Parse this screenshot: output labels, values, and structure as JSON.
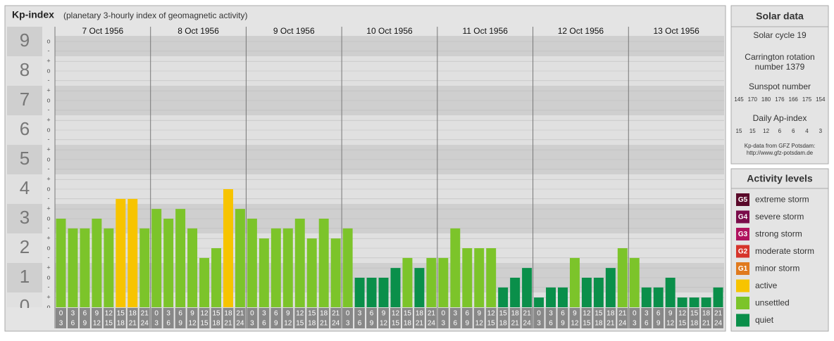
{
  "chart_data": {
    "type": "bar",
    "title": "Kp-index",
    "subtitle": "(planetary 3-hourly index of geomagnetic activity)",
    "ylim": [
      0,
      9.5
    ],
    "yticks": [
      0,
      1,
      2,
      3,
      4,
      5,
      6,
      7,
      8,
      9
    ],
    "minor_yticks": [
      {
        "value": 0,
        "label": "o"
      },
      {
        "value": 0.33,
        "label": "+"
      },
      {
        "value": 0.67,
        "label": "-"
      },
      {
        "value": 1,
        "label": "o"
      },
      {
        "value": 1.33,
        "label": "+"
      },
      {
        "value": 1.67,
        "label": "-"
      },
      {
        "value": 2,
        "label": "o"
      },
      {
        "value": 2.33,
        "label": "+"
      },
      {
        "value": 2.67,
        "label": "-"
      },
      {
        "value": 3,
        "label": "o"
      },
      {
        "value": 3.33,
        "label": "+"
      },
      {
        "value": 3.67,
        "label": "-"
      },
      {
        "value": 4,
        "label": "o"
      },
      {
        "value": 4.33,
        "label": "+"
      },
      {
        "value": 4.67,
        "label": "-"
      },
      {
        "value": 5,
        "label": "o"
      },
      {
        "value": 5.33,
        "label": "+"
      },
      {
        "value": 5.67,
        "label": "-"
      },
      {
        "value": 6,
        "label": "o"
      },
      {
        "value": 6.33,
        "label": "+"
      },
      {
        "value": 6.67,
        "label": "-"
      },
      {
        "value": 7,
        "label": "o"
      },
      {
        "value": 7.33,
        "label": "+"
      },
      {
        "value": 7.67,
        "label": "-"
      },
      {
        "value": 8,
        "label": "o"
      },
      {
        "value": 8.33,
        "label": "+"
      },
      {
        "value": 8.67,
        "label": "-"
      },
      {
        "value": 9,
        "label": "o"
      }
    ],
    "slots": [
      {
        "start": "0",
        "end": "3"
      },
      {
        "start": "3",
        "end": "6"
      },
      {
        "start": "6",
        "end": "9"
      },
      {
        "start": "9",
        "end": "12"
      },
      {
        "start": "12",
        "end": "15"
      },
      {
        "start": "15",
        "end": "18"
      },
      {
        "start": "18",
        "end": "21"
      },
      {
        "start": "21",
        "end": "24"
      }
    ],
    "series": [
      {
        "name": "7 Oct 1956",
        "values": [
          3,
          2.67,
          2.67,
          3,
          2.67,
          3.67,
          3.67,
          2.67
        ],
        "colors": [
          "#7cc42a",
          "#7cc42a",
          "#7cc42a",
          "#7cc42a",
          "#7cc42a",
          "#f7c400",
          "#f7c400",
          "#7cc42a"
        ]
      },
      {
        "name": "8 Oct 1956",
        "values": [
          3.33,
          3,
          3.33,
          2.67,
          1.67,
          2,
          4,
          3.33
        ],
        "colors": [
          "#7cc42a",
          "#7cc42a",
          "#7cc42a",
          "#7cc42a",
          "#7cc42a",
          "#7cc42a",
          "#f7c400",
          "#7cc42a"
        ]
      },
      {
        "name": "9 Oct 1956",
        "values": [
          3,
          2.33,
          2.67,
          2.67,
          3,
          2.33,
          3,
          2.33
        ],
        "colors": [
          "#7cc42a",
          "#7cc42a",
          "#7cc42a",
          "#7cc42a",
          "#7cc42a",
          "#7cc42a",
          "#7cc42a",
          "#7cc42a"
        ]
      },
      {
        "name": "10 Oct 1956",
        "values": [
          2.67,
          1,
          1,
          1,
          1.33,
          1.67,
          1.33,
          1.67
        ],
        "colors": [
          "#7cc42a",
          "#0a8f4a",
          "#0a8f4a",
          "#0a8f4a",
          "#0a8f4a",
          "#7cc42a",
          "#0a8f4a",
          "#7cc42a"
        ]
      },
      {
        "name": "11 Oct 1956",
        "values": [
          1.67,
          2.67,
          2,
          2,
          2,
          0.67,
          1,
          1.33
        ],
        "colors": [
          "#7cc42a",
          "#7cc42a",
          "#7cc42a",
          "#7cc42a",
          "#7cc42a",
          "#0a8f4a",
          "#0a8f4a",
          "#0a8f4a"
        ]
      },
      {
        "name": "12 Oct 1956",
        "values": [
          0.33,
          0.67,
          0.67,
          1.67,
          1,
          1,
          1.33,
          2
        ],
        "colors": [
          "#0a8f4a",
          "#0a8f4a",
          "#0a8f4a",
          "#7cc42a",
          "#0a8f4a",
          "#0a8f4a",
          "#0a8f4a",
          "#7cc42a"
        ]
      },
      {
        "name": "13 Oct 1956",
        "values": [
          1.67,
          0.67,
          0.67,
          1,
          0.33,
          0.33,
          0.33,
          0.67
        ],
        "colors": [
          "#7cc42a",
          "#0a8f4a",
          "#0a8f4a",
          "#0a8f4a",
          "#0a8f4a",
          "#0a8f4a",
          "#0a8f4a",
          "#0a8f4a"
        ]
      }
    ]
  },
  "solar_data": {
    "title": "Solar data",
    "cycle": "Solar cycle 19",
    "carrington": [
      "Carrington rotation",
      "number 1379"
    ],
    "sunspot_title": "Sunspot number",
    "sunspot": [
      "145",
      "170",
      "180",
      "176",
      "166",
      "175",
      "154"
    ],
    "ap_title": "Daily Ap-index",
    "ap": [
      "15",
      "15",
      "12",
      "6",
      "6",
      "4",
      "3"
    ],
    "source": [
      "Kp-data from GFZ Potsdam:",
      "http://www.gfz-potsdam.de"
    ]
  },
  "activity_levels": {
    "title": "Activity levels",
    "items": [
      {
        "badge": "G5",
        "label": "extreme storm",
        "color": "#5a0a2a"
      },
      {
        "badge": "G4",
        "label": "severe storm",
        "color": "#7a0c4a"
      },
      {
        "badge": "G3",
        "label": "strong storm",
        "color": "#b0125e"
      },
      {
        "badge": "G2",
        "label": "moderate storm",
        "color": "#d6342a"
      },
      {
        "badge": "G1",
        "label": "minor storm",
        "color": "#e07a1e"
      },
      {
        "label": "active",
        "color": "#f7c400"
      },
      {
        "label": "unsettled",
        "color": "#7cc42a"
      },
      {
        "label": "quiet",
        "color": "#0a8f4a"
      }
    ]
  }
}
